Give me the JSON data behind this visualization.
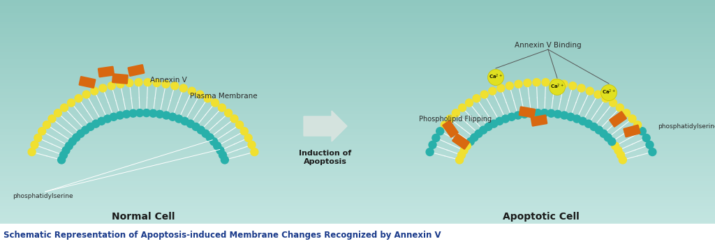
{
  "bg_top": "#8fc8c0",
  "bg_bottom": "#c8e8e4",
  "title_text": "Schematic Representation of Apoptosis-induced Membrane Changes Recognized by Annexin V",
  "title_color": "#1a3a8a",
  "title_fontsize": 8.5,
  "normal_cell_label": "Normal Cell",
  "apoptotic_cell_label": "Apoptotic Cell",
  "annexin_v_label": "Annexin V",
  "plasma_membrane_label": "Plasma Membrane",
  "phosphatidylserine_left": "phosphatidylserine",
  "phosphatidylserine_right": "phosphatidylserine",
  "induction_label": "Induction of\nApoptosis",
  "annexin_v_binding_label": "Annexin V Binding",
  "phospholipid_flipping_label": "Phospholipid Flipping",
  "yellow_color": "#f0e030",
  "teal_color": "#28b0aa",
  "orange_color": "#d86810",
  "ca2_color": "#e0e020",
  "arrow_color": "#d8e4e0",
  "label_color": "#2a2a2a",
  "white": "#ffffff"
}
